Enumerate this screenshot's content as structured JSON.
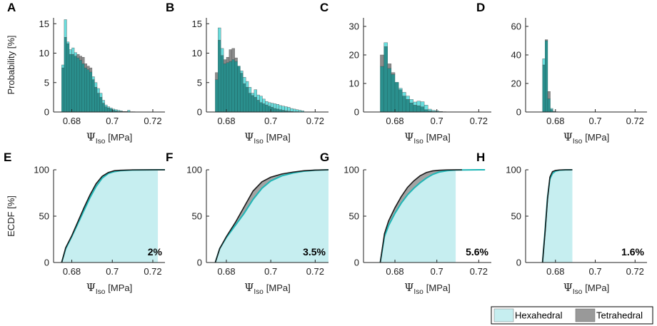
{
  "colors": {
    "hex_bar": "#4fd8d8",
    "tet_bar": "#777777",
    "overlap_bar": "#2a8f8d",
    "hex_fill": "#c6eef0",
    "hex_line": "#1fb6b6",
    "tet_line": "#1a1a1a",
    "tet_band": "#999999"
  },
  "legend": {
    "hexahedral": "Hexahedral",
    "tetrahedral": "Tetrahedral"
  },
  "chart_data": [
    {
      "id": "A",
      "type": "bar",
      "panel": "A",
      "ylabel": "Probability [%]",
      "xlabel": "Ψ",
      "xlabel_sub": "Iso",
      "xlabel_unit": "[MPa]",
      "xlim": [
        0.671,
        0.726
      ],
      "ylim": [
        0,
        16
      ],
      "xticks": [
        0.68,
        0.7,
        0.72
      ],
      "xticklabels": [
        "0.68",
        "0.7",
        "0.72"
      ],
      "yticks": [
        0,
        5,
        10,
        15
      ],
      "yticklabels": [
        "0",
        "5",
        "10",
        "15"
      ],
      "bin_start": 0.675,
      "bin_width": 0.00125,
      "series": [
        {
          "name": "Hexahedral",
          "values": [
            8,
            15.7,
            11.9,
            10.6,
            10.9,
            10.1,
            9.2,
            8.8,
            8.2,
            7.5,
            7.2,
            6.8,
            6.0,
            5.0,
            4.0,
            3.2,
            2.0,
            1.2,
            0.9,
            0.7,
            0.5,
            0.4,
            0.3,
            0.2,
            0.1,
            0.1,
            0.3,
            0.05,
            0.05
          ]
        },
        {
          "name": "Tetrahedral",
          "values": [
            7.5,
            12.7,
            11.6,
            9.8,
            9.8,
            9.5,
            9.8,
            9.5,
            9.3,
            8.2,
            7.8,
            7.5,
            5.5,
            4.2,
            3.2,
            2.5,
            1.5,
            0.9,
            0.7,
            0.5,
            0.3,
            0.2,
            0.1,
            0.1,
            0.05,
            0.05,
            0.05,
            0,
            0
          ]
        }
      ]
    },
    {
      "id": "B",
      "type": "bar",
      "panel": "B",
      "ylabel": "",
      "xlabel": "Ψ",
      "xlabel_sub": "Iso",
      "xlabel_unit": "[MPa]",
      "xlim": [
        0.671,
        0.726
      ],
      "ylim": [
        0,
        16
      ],
      "xticks": [
        0.68,
        0.7,
        0.72
      ],
      "xticklabels": [
        "0.68",
        "0.7",
        "0.72"
      ],
      "yticks": [
        0,
        5,
        10,
        15
      ],
      "yticklabels": [
        "0",
        "5",
        "10",
        "15"
      ],
      "bin_start": 0.675,
      "bin_width": 0.00125,
      "series": [
        {
          "name": "Hexahedral",
          "values": [
            5.5,
            14.3,
            10.8,
            8.2,
            8.4,
            8.6,
            8.9,
            8.6,
            7.8,
            7.0,
            5.9,
            5.2,
            4.2,
            3.2,
            3.8,
            2.9,
            2.7,
            2.2,
            1.8,
            1.6,
            1.5,
            1.4,
            1.3,
            1.1,
            1.0,
            0.9,
            0.8,
            0.6,
            0.5,
            0.4,
            0.3,
            0.2
          ]
        },
        {
          "name": "Tetrahedral",
          "values": [
            6.7,
            12.2,
            9.6,
            8.9,
            9.3,
            10.6,
            10.8,
            9.2,
            7.8,
            6.6,
            4.8,
            4.2,
            3.2,
            2.8,
            2.5,
            2.0,
            1.6,
            1.4,
            1.2,
            1.0,
            0.8,
            0.6,
            0.5,
            0.4,
            0.3,
            0.2,
            0.15,
            0.1,
            0.05,
            0.05,
            0,
            0
          ]
        }
      ]
    },
    {
      "id": "C",
      "type": "bar",
      "panel": "C",
      "ylabel": "",
      "xlabel": "Ψ",
      "xlabel_sub": "Iso",
      "xlabel_unit": "[MPa]",
      "xlim": [
        0.665,
        0.726
      ],
      "ylim": [
        0,
        33
      ],
      "xticks": [
        0.68,
        0.7,
        0.72
      ],
      "xticklabels": [
        "0.68",
        "0.7",
        "0.72"
      ],
      "yticks": [
        0,
        10,
        20,
        30
      ],
      "yticklabels": [
        "0",
        "10",
        "20",
        "30"
      ],
      "bin_start": 0.673,
      "bin_width": 0.00175,
      "series": [
        {
          "name": "Hexahedral",
          "values": [
            16,
            24.3,
            15.3,
            13.2,
            10.4,
            8.3,
            6.9,
            5.6,
            4.4,
            3.5,
            3.8,
            3.6,
            2.4,
            1.0,
            0.6,
            0.4,
            0.2,
            0.1
          ]
        },
        {
          "name": "Tetrahedral",
          "values": [
            20,
            22.9,
            16.9,
            13.8,
            10.4,
            7.8,
            5.6,
            4.4,
            3.2,
            2.4,
            2.2,
            1.8,
            0.8,
            0.4,
            0.2,
            0.1,
            0.05,
            0
          ]
        }
      ]
    },
    {
      "id": "D",
      "type": "bar",
      "panel": "D",
      "ylabel": "",
      "xlabel": "Ψ",
      "xlabel_sub": "Iso",
      "xlabel_unit": "[MPa]",
      "xlim": [
        0.665,
        0.726
      ],
      "ylim": [
        0,
        66
      ],
      "xticks": [
        0.68,
        0.7,
        0.72
      ],
      "xticklabels": [
        "0.68",
        "0.7",
        "0.72"
      ],
      "yticks": [
        0,
        20,
        40,
        60
      ],
      "yticklabels": [
        "0",
        "20",
        "40",
        "60"
      ],
      "bin_start": 0.6735,
      "bin_width": 0.0013,
      "series": [
        {
          "name": "Hexahedral",
          "values": [
            37.3,
            50,
            9.3,
            2.5,
            0.5,
            0.2
          ]
        },
        {
          "name": "Tetrahedral",
          "values": [
            33,
            50.7,
            14.4,
            1.7,
            0.2,
            0
          ]
        }
      ]
    },
    {
      "id": "E",
      "type": "area",
      "panel": "E",
      "ylabel": "ECDF [%]",
      "xlabel": "Ψ",
      "xlabel_sub": "Iso",
      "xlabel_unit": "[MPa]",
      "xlim": [
        0.671,
        0.726
      ],
      "ylim": [
        0,
        100
      ],
      "xticks": [
        0.68,
        0.7,
        0.72
      ],
      "xticklabels": [
        "0.68",
        "0.7",
        "0.72"
      ],
      "yticks": [
        0,
        50,
        100
      ],
      "yticklabels": [
        "0",
        "50",
        "100"
      ],
      "annotation": "2%",
      "fill_end": 0.7225,
      "series": [
        {
          "name": "Hexahedral",
          "x": [
            0.675,
            0.677,
            0.68,
            0.683,
            0.686,
            0.689,
            0.692,
            0.695,
            0.698,
            0.701,
            0.704,
            0.71,
            0.7225,
            0.726
          ],
          "y": [
            0,
            15,
            28,
            42,
            56,
            70,
            82,
            91,
            96,
            98,
            99,
            99.7,
            100,
            100
          ]
        },
        {
          "name": "Tetrahedral",
          "x": [
            0.675,
            0.677,
            0.68,
            0.683,
            0.686,
            0.689,
            0.692,
            0.695,
            0.698,
            0.701,
            0.704,
            0.71,
            0.72,
            0.726
          ],
          "y": [
            0,
            16,
            29,
            44,
            59,
            73,
            85,
            93,
            97,
            99,
            99.5,
            99.9,
            100,
            100
          ]
        }
      ]
    },
    {
      "id": "F",
      "type": "area",
      "panel": "F",
      "ylabel": "",
      "xlabel": "Ψ",
      "xlabel_sub": "Iso",
      "xlabel_unit": "[MPa]",
      "xlim": [
        0.671,
        0.726
      ],
      "ylim": [
        0,
        100
      ],
      "xticks": [
        0.68,
        0.7,
        0.72
      ],
      "xticklabels": [
        "0.68",
        "0.7",
        "0.72"
      ],
      "yticks": [
        0,
        50,
        100
      ],
      "yticklabels": [
        "0",
        "50",
        "100"
      ],
      "annotation": "3.5%",
      "fill_end": 0.726,
      "series": [
        {
          "name": "Hexahedral",
          "x": [
            0.675,
            0.677,
            0.68,
            0.684,
            0.688,
            0.692,
            0.696,
            0.7,
            0.705,
            0.71,
            0.715,
            0.72,
            0.726
          ],
          "y": [
            0,
            15,
            27,
            40,
            53,
            68,
            80,
            88,
            93.5,
            96.5,
            98.5,
            99.5,
            100
          ]
        },
        {
          "name": "Tetrahedral",
          "x": [
            0.675,
            0.677,
            0.68,
            0.684,
            0.688,
            0.692,
            0.696,
            0.7,
            0.705,
            0.71,
            0.715,
            0.72,
            0.726
          ],
          "y": [
            0,
            15,
            28,
            43,
            60,
            77,
            87,
            92,
            95.5,
            97.5,
            99,
            99.7,
            100
          ]
        }
      ]
    },
    {
      "id": "G",
      "type": "area",
      "panel": "G",
      "ylabel": "",
      "xlabel": "Ψ",
      "xlabel_sub": "Iso",
      "xlabel_unit": "[MPa]",
      "xlim": [
        0.665,
        0.726
      ],
      "ylim": [
        0,
        100
      ],
      "xticks": [
        0.68,
        0.7,
        0.72
      ],
      "xticklabels": [
        "0.68",
        "0.7",
        "0.72"
      ],
      "yticks": [
        0,
        50,
        100
      ],
      "yticklabels": [
        "0",
        "50",
        "100"
      ],
      "annotation": "5.6%",
      "fill_end": 0.709,
      "series": [
        {
          "name": "Hexahedral",
          "x": [
            0.673,
            0.675,
            0.677,
            0.68,
            0.683,
            0.686,
            0.689,
            0.692,
            0.695,
            0.698,
            0.701,
            0.705,
            0.709,
            0.72,
            0.723
          ],
          "y": [
            0,
            28,
            40,
            53,
            64,
            73,
            80,
            86,
            91,
            95,
            97.5,
            99,
            99.7,
            100,
            100
          ]
        },
        {
          "name": "Tetrahedral",
          "x": [
            0.673,
            0.675,
            0.677,
            0.68,
            0.683,
            0.686,
            0.689,
            0.692,
            0.695,
            0.698,
            0.701,
            0.705,
            0.712
          ],
          "y": [
            0,
            31,
            45,
            59,
            71,
            81,
            88,
            93.5,
            97,
            98.8,
            99.5,
            99.9,
            100
          ]
        }
      ]
    },
    {
      "id": "H",
      "type": "area",
      "panel": "H",
      "ylabel": "",
      "xlabel": "Ψ",
      "xlabel_sub": "Iso",
      "xlabel_unit": "[MPa]",
      "xlim": [
        0.665,
        0.726
      ],
      "ylim": [
        0,
        100
      ],
      "xticks": [
        0.68,
        0.7,
        0.72
      ],
      "xticklabels": [
        "0.68",
        "0.7",
        "0.72"
      ],
      "yticks": [
        0,
        50,
        100
      ],
      "yticklabels": [
        "0",
        "50",
        "100"
      ],
      "annotation": "1.6%",
      "fill_end": 0.6885,
      "series": [
        {
          "name": "Hexahedral",
          "x": [
            0.6735,
            0.6748,
            0.676,
            0.6772,
            0.6785,
            0.68,
            0.682,
            0.685,
            0.6885
          ],
          "y": [
            0,
            35,
            70,
            90,
            96,
            98.5,
            99.5,
            99.9,
            100
          ]
        },
        {
          "name": "Tetrahedral",
          "x": [
            0.6735,
            0.6748,
            0.676,
            0.6772,
            0.6785,
            0.68,
            0.682,
            0.685,
            0.6885
          ],
          "y": [
            0,
            33,
            68,
            92,
            98,
            99.3,
            99.8,
            100,
            100
          ]
        }
      ]
    }
  ]
}
